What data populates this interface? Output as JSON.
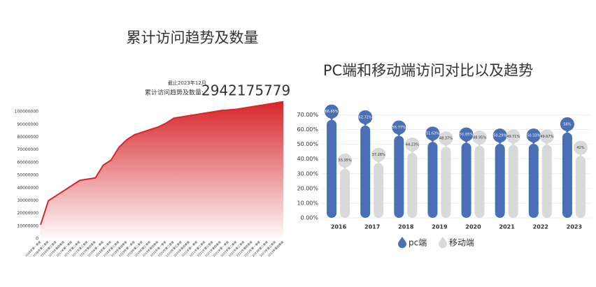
{
  "chart_data": [
    {
      "type": "area",
      "title": "累计访问趋势及数量",
      "annotations": [
        "截止2023年12月",
        "累计访问趋势及数量:"
      ],
      "total": 2942175779,
      "categories": [
        "2016年第一季度",
        "2016年第二季度",
        "2016年第三季度",
        "2016年第四季度",
        "2017年第一季度",
        "2017年第二季度",
        "2017年第三季度",
        "2017年第四季度",
        "2018年第一季度",
        "2018年第二季度",
        "2018年第三季度",
        "2018年第四季度",
        "2019年第一季度",
        "2019年第二季度",
        "2019年第三季度",
        "2019年第四季度",
        "2020年第一季度",
        "2020年第二季度",
        "2020年第三季度",
        "2020年第四季度",
        "2021年第一季度",
        "2021年第二季度",
        "2021年第三季度",
        "2021年第四季度",
        "2022年第一季度",
        "2022年第二季度",
        "2022年第三季度",
        "2022年第四季度",
        "2023年第一季度",
        "2023年第二季度",
        "2023年第三季度",
        "2023年第四季度"
      ],
      "values": [
        11000000,
        30000000,
        34000000,
        38000000,
        42000000,
        46000000,
        47000000,
        48000000,
        58000000,
        62000000,
        72000000,
        78000000,
        82000000,
        84000000,
        86000000,
        88000000,
        91000000,
        95000000,
        96000000,
        97000000,
        98000000,
        99000000,
        100000000,
        101000000,
        101500000,
        102000000,
        103000000,
        104000000,
        105000000,
        106000000,
        107000000,
        108000000
      ],
      "color": "#d7262b",
      "ylim": [
        0,
        110000000
      ],
      "yticks": [
        0,
        10000000,
        20000000,
        30000000,
        40000000,
        50000000,
        60000000,
        70000000,
        80000000,
        90000000,
        100000000
      ]
    },
    {
      "type": "bar",
      "title": "PC端和移动端访问对比以及趋势",
      "categories": [
        "2016",
        "2017",
        "2018",
        "2019",
        "2020",
        "2021",
        "2022",
        "2023"
      ],
      "series": [
        {
          "name": "pc端",
          "color": "#4a6fb5",
          "values": [
            66.65,
            62.72,
            55.77,
            51.63,
            51.05,
            50.29,
            50.33,
            58
          ],
          "value_labels": [
            "66.65%",
            "62.72%",
            "55.77%",
            "51.63%",
            "51.05%",
            "50.29%",
            "50.33%",
            "58%"
          ]
        },
        {
          "name": "移动端",
          "color": "#d9d9dc",
          "values": [
            33.35,
            37.28,
            44.23,
            48.37,
            48.95,
            49.71,
            49.67,
            42
          ],
          "value_labels": [
            "33.35%",
            "37.28%",
            "44.23%",
            "48.37%",
            "48.95%",
            "49.71%",
            "49.67%",
            "42%"
          ]
        }
      ],
      "ylim": [
        0,
        75
      ],
      "yticks": [
        {
          "value": 0,
          "label": "0.00%"
        },
        {
          "value": 10,
          "label": "10.00%"
        },
        {
          "value": 20,
          "label": "20.00%"
        },
        {
          "value": 30,
          "label": "30.00%"
        },
        {
          "value": 40,
          "label": "40.00%"
        },
        {
          "value": 50,
          "label": "50.00%"
        },
        {
          "value": 60,
          "label": "60.00%"
        },
        {
          "value": 70,
          "label": "70.00%"
        }
      ],
      "grid": true
    }
  ]
}
